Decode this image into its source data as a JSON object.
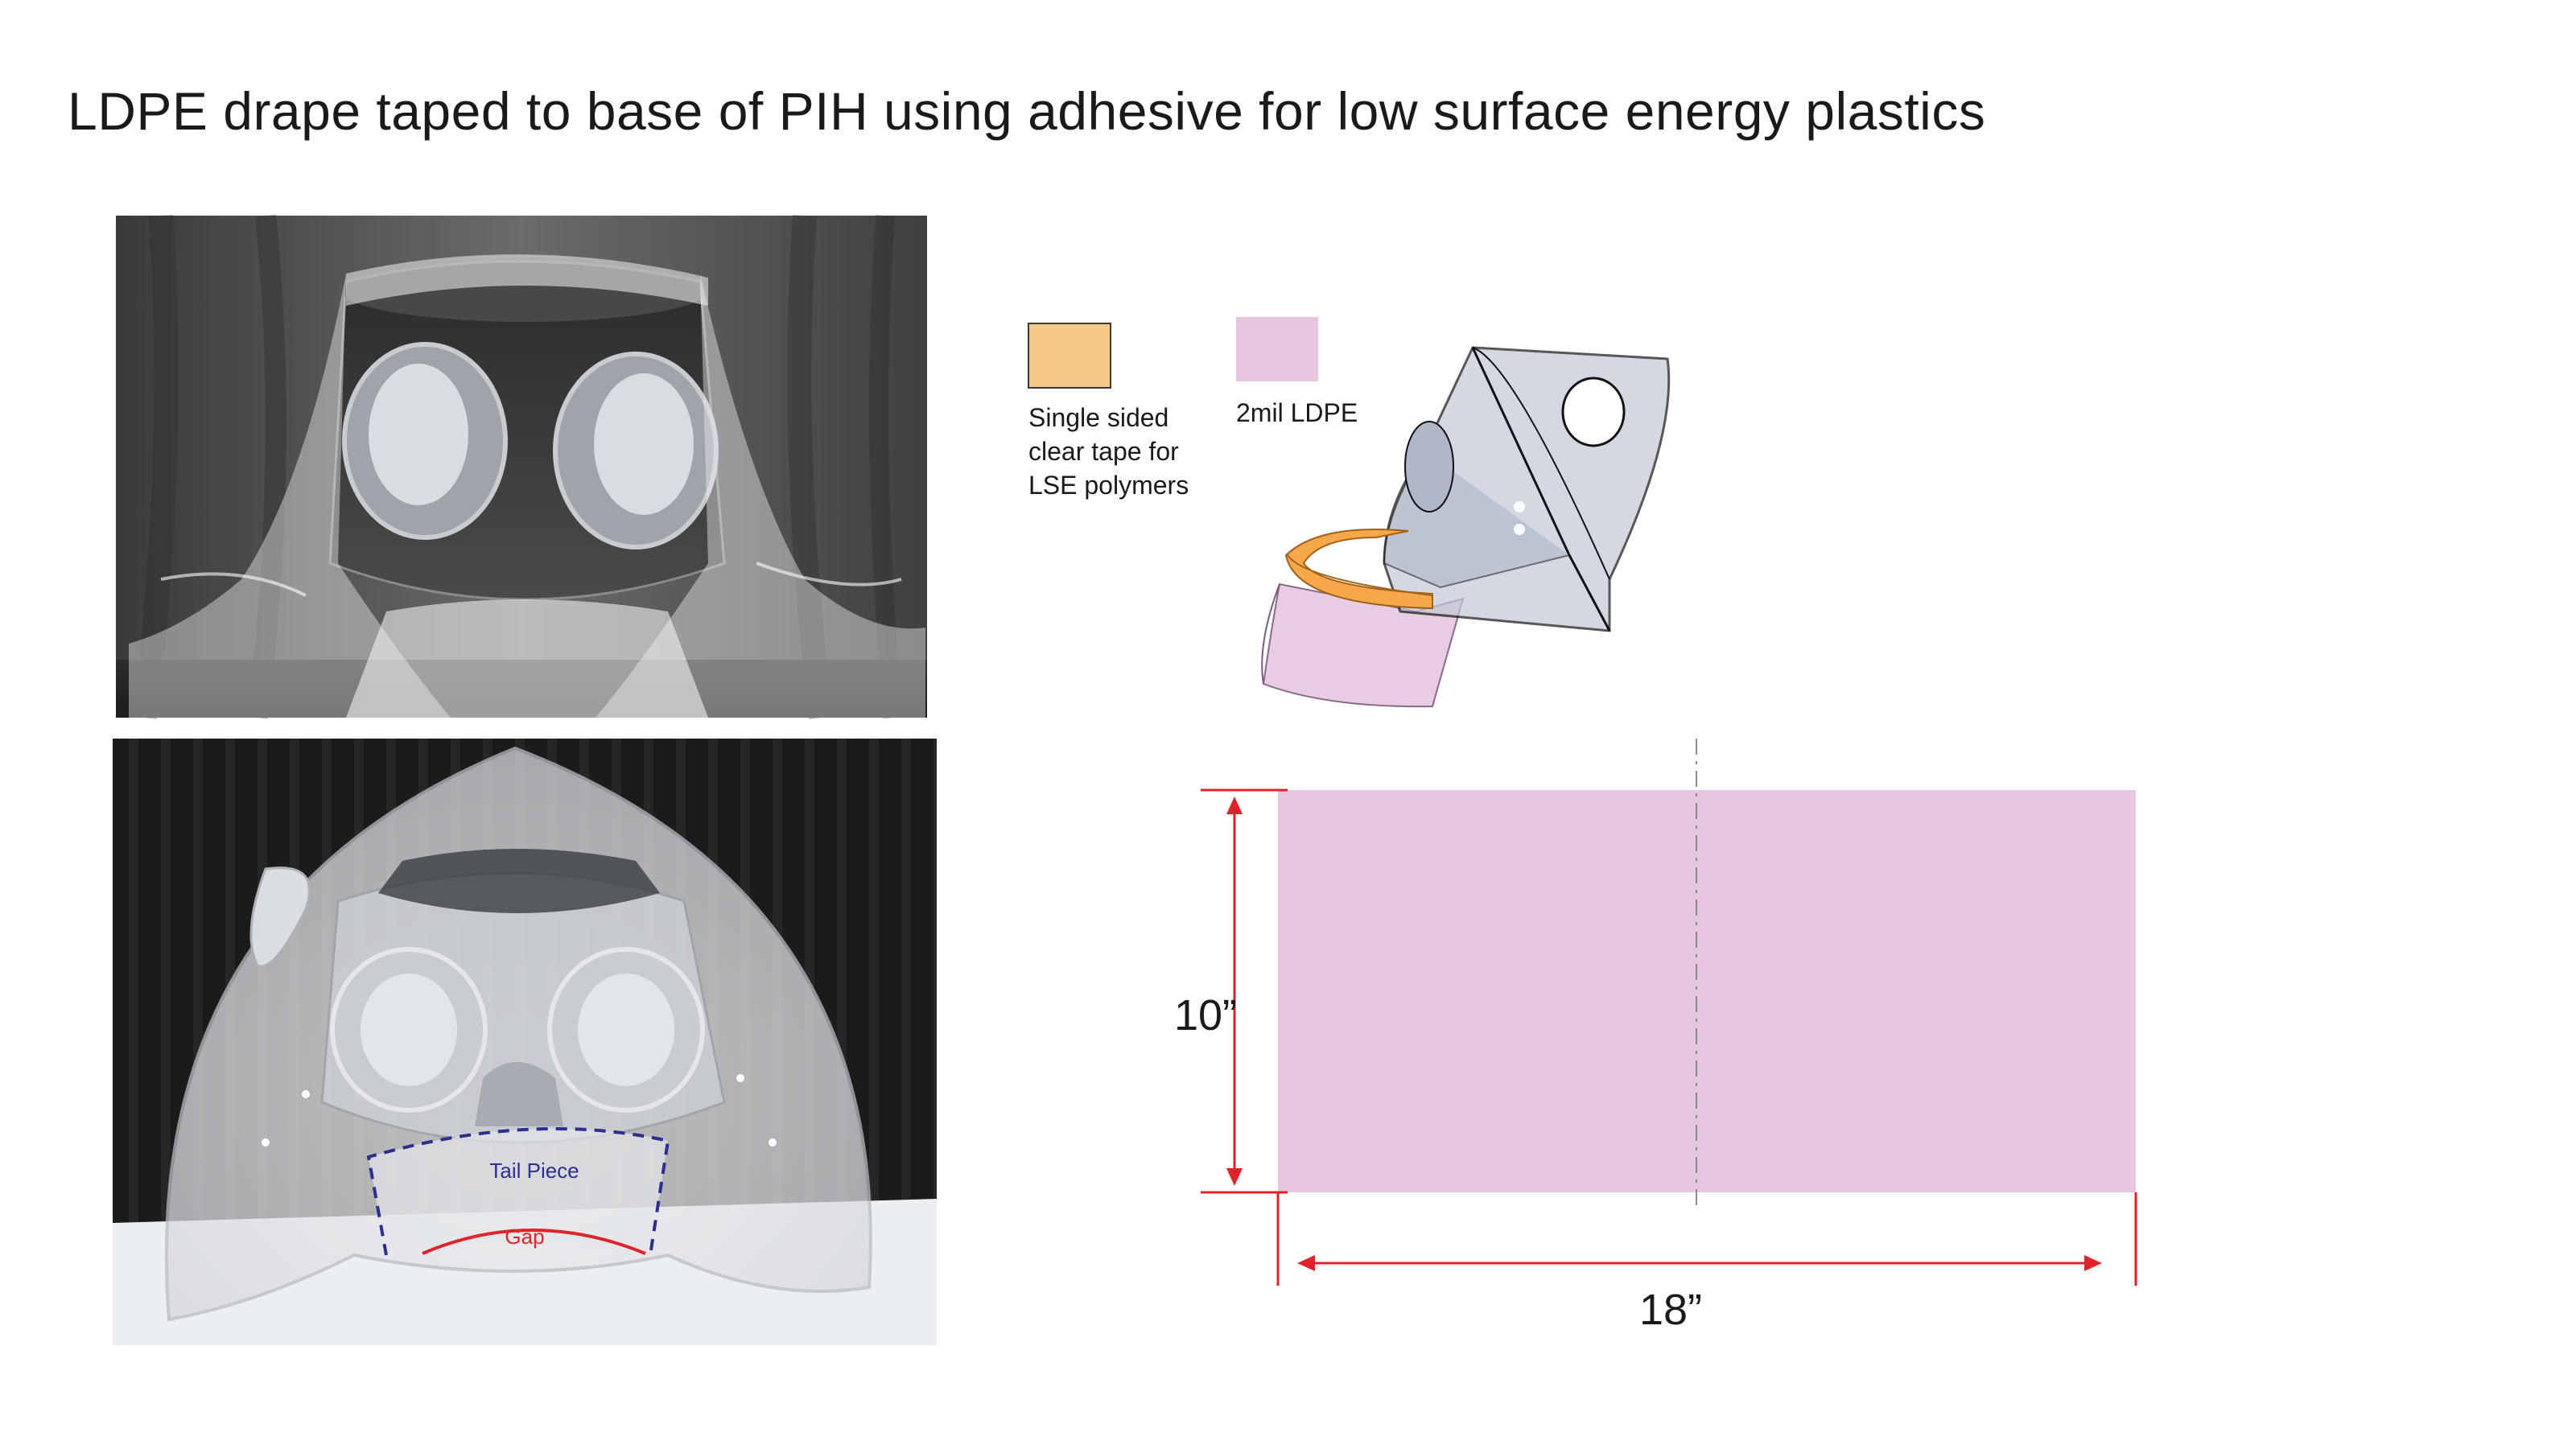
{
  "slide": {
    "title": "LDPE drape taped to base of PIH using adhesive for low surface energy plastics"
  },
  "legend": {
    "tape": {
      "lines": [
        "Single sided",
        "clear tape for",
        "LSE polymers"
      ],
      "color": "#f5c98a"
    },
    "ldpe": {
      "label": "2mil LDPE",
      "color": "#e6c7e0"
    }
  },
  "photo_bottom": {
    "tail_label": "Tail Piece",
    "gap_label": "Gap",
    "tail_color": "#2b2f8f",
    "gap_color": "#e0232a"
  },
  "drape_spec": {
    "height_label": "10”",
    "width_label": "18”",
    "fill_color": "#e6c7e0",
    "dimension_color": "#e0232a"
  },
  "icons": [
    "photo-hood-with-drape",
    "photo-hood-front",
    "hood-isometric-diagram"
  ]
}
